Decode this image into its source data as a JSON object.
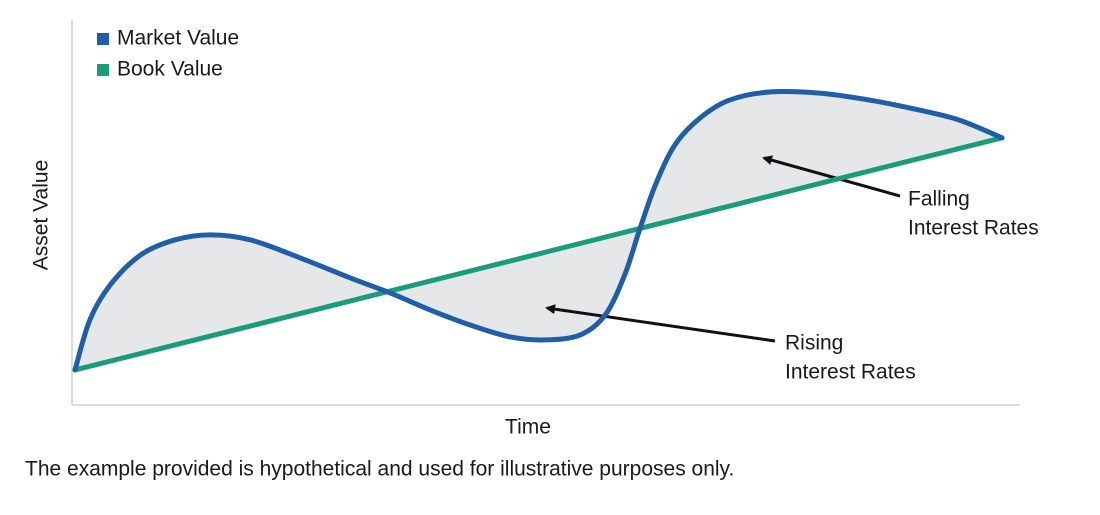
{
  "chart_data": {
    "type": "line",
    "x_label": "Time",
    "y_label": "Asset Value",
    "xlim": [
      0,
      100
    ],
    "ylim": [
      0,
      100
    ],
    "fill_between": true,
    "series": [
      {
        "name": "Market Value",
        "color": "#1f5fa8",
        "x": [
          0,
          1.6,
          3.8,
          7.1,
          10.8,
          14.6,
          18.9,
          24.3,
          29.7,
          34.0,
          38.3,
          42.6,
          46.9,
          50.7,
          54.5,
          57.2,
          59.3,
          60.9,
          62.6,
          64.7,
          67.4,
          70.6,
          74.9,
          80.3,
          85.7,
          91.1,
          95.4,
          100
        ],
        "values": [
          9.1,
          22.1,
          31.2,
          39.0,
          42.9,
          44.2,
          42.9,
          38.2,
          33.0,
          29.1,
          24.7,
          20.8,
          17.7,
          16.9,
          18.2,
          23.4,
          33.8,
          45.5,
          57.1,
          67.5,
          74.5,
          79.2,
          81.3,
          81.0,
          79.2,
          76.6,
          74.0,
          69.4
        ]
      },
      {
        "name": "Book Value",
        "color": "#1a9c7a",
        "x": [
          0,
          100
        ],
        "values": [
          9.1,
          69.4
        ]
      }
    ],
    "annotations": [
      {
        "lines": [
          "Falling",
          "Interest Rates"
        ]
      },
      {
        "lines": [
          "Rising",
          "Interest Rates"
        ]
      }
    ],
    "note": "The example provided is hypothetical and used for illustrative purposes only."
  }
}
